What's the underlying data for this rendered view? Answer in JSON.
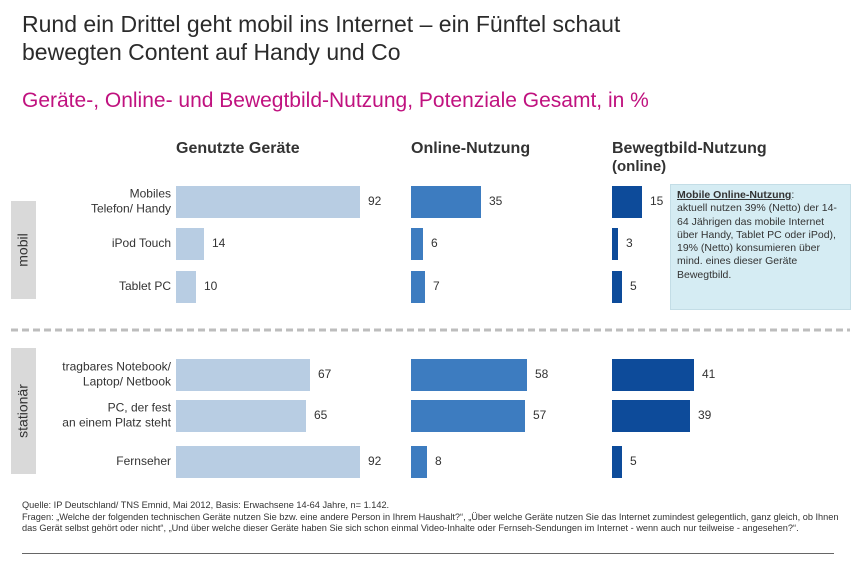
{
  "title_line1": "Rund ein Drittel geht mobil ins Internet – ein Fünftel schaut",
  "title_line2": "bewegten Content auf Handy und Co",
  "subtitle": "Geräte-, Online- und Bewegtbild-Nutzung, Potenziale Gesamt, in %",
  "chart_data": {
    "type": "bar",
    "orientation": "horizontal",
    "groups": [
      {
        "name": "mobil",
        "categories": [
          [
            "Mobiles",
            "Telefon/ Handy"
          ],
          [
            "iPod Touch"
          ],
          [
            "Tablet PC"
          ]
        ]
      },
      {
        "name": "stationär",
        "categories": [
          [
            "tragbares Notebook/",
            "Laptop/ Netbook"
          ],
          [
            "PC, der fest",
            "an einem Platz steht"
          ],
          [
            "Fernseher"
          ]
        ]
      }
    ],
    "series": [
      {
        "name": "Genutzte Geräte",
        "name_line2": "",
        "color": "#b8cde3",
        "values": [
          92,
          14,
          10,
          67,
          65,
          92
        ]
      },
      {
        "name": "Online-Nutzung",
        "name_line2": "",
        "color": "#3d7cc0",
        "values": [
          35,
          6,
          7,
          58,
          57,
          8
        ]
      },
      {
        "name": "Bewegtbild-Nutzung",
        "name_line2": "(online)",
        "color": "#0d4b9a",
        "values": [
          15,
          3,
          5,
          41,
          39,
          5
        ]
      }
    ],
    "xlim": [
      0,
      100
    ]
  },
  "colors": {
    "title": "#2b2b2b",
    "subtitle": "#c0127f",
    "group_label_bg": "#d9d9d9",
    "note_bg": "#d5ecf3"
  },
  "note": {
    "title": "Mobile Online-Nutzung",
    "title_suffix": ":",
    "text": "aktuell nutzen 39% (Netto) der 14-64 Jährigen das mobile Internet über Handy, Tablet PC oder iPod),",
    "text2": "19% (Netto) konsumieren über mind. eines dieser Geräte Bewegtbild."
  },
  "footer": {
    "source": "Quelle: IP Deutschland/ TNS Emnid, Mai 2012, Basis: Erwachsene 14-64 Jahre, n= 1.142.",
    "questions": "Fragen: „Welche der folgenden technischen Geräte nutzen Sie bzw. eine andere Person in Ihrem Haushalt?“, „Über welche Geräte nutzen Sie das Internet zumindest gelegentlich, ganz gleich, ob Ihnen das Gerät selbst gehört oder nicht“, „Und über welche dieser Geräte haben Sie sich schon einmal Video-Inhalte oder Fernseh-Sendungen im Internet - wenn auch nur teilweise - angesehen?“."
  }
}
